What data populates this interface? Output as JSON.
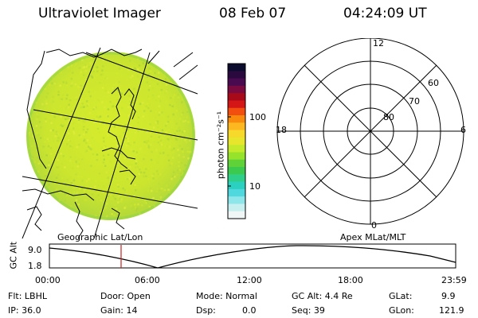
{
  "header": {
    "instrument": "Ultraviolet Imager",
    "date": "08 Feb 07",
    "time": "04:24:09 UT"
  },
  "colorbar": {
    "label": "photon cm⁻²s⁻¹",
    "tick_high": "100",
    "tick_low": "10",
    "colors": [
      "#0b0b2e",
      "#2a0a3e",
      "#4a0a50",
      "#7a0a40",
      "#a80a1a",
      "#d41616",
      "#f24e10",
      "#f88a0e",
      "#fdb821",
      "#f6d92a",
      "#e7e62c",
      "#c5ea2b",
      "#97e22a",
      "#5fd23a",
      "#3bc94e",
      "#2fcf8a",
      "#2bd0c0",
      "#4fd8de",
      "#8fe6ea",
      "#c8eff0",
      "#f0f6f6"
    ]
  },
  "image_panel": {
    "label": "Geographic Lat/Lon",
    "aurora_colors": [
      "#d2ea2a",
      "#c6e32d",
      "#b8db33",
      "#a9d23a",
      "#e0ee3e"
    ]
  },
  "polar_panel": {
    "label": "Apex MLat/MLT",
    "mlt_labels": {
      "top": "12",
      "bottom": "0",
      "left": "18",
      "right": "6"
    },
    "mlat_labels": [
      "60",
      "70",
      "80"
    ]
  },
  "timeline": {
    "axis_label": "GC Alt",
    "y_labels": [
      "9.0",
      "1.8"
    ],
    "x_labels": [
      "00:00",
      "06:00",
      "12:00",
      "18:00",
      "23:59"
    ],
    "current_marker_color": "#cc2020"
  },
  "info": {
    "filter": "Flt: LBHL",
    "ip": "IP: 36.0",
    "door": "Door: Open",
    "gain": "Gain: 14",
    "mode": "Mode: Normal",
    "dsp_label": "Dsp:",
    "dsp_value": "0.0",
    "gc_alt": "GC Alt: 4.4 Re",
    "seq": "Seq: 39",
    "glat_label": "GLat:",
    "glat_value": "9.9",
    "glon_label": "GLon:",
    "glon_value": "121.9"
  }
}
